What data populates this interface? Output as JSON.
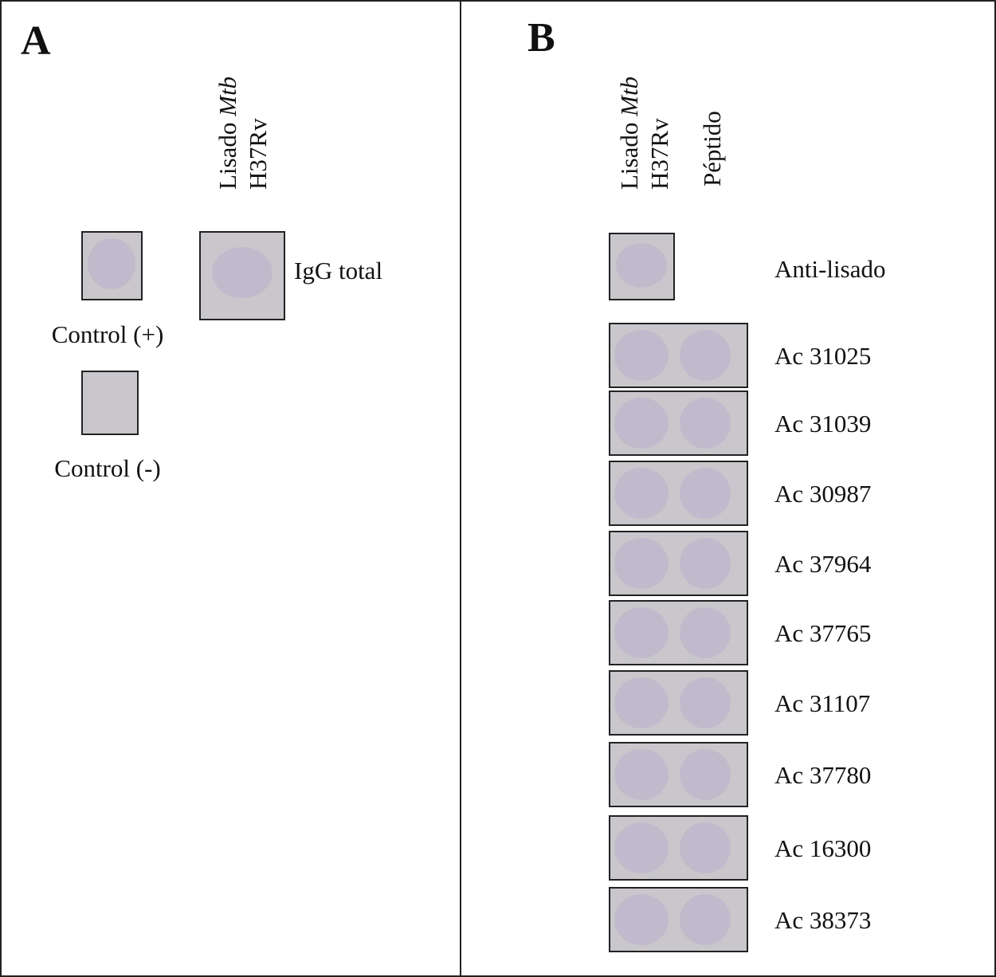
{
  "panel_a": {
    "label": "A",
    "column_header": {
      "line1": "Lisado",
      "line1_italic": "Mtb",
      "line2": "H37Rv"
    },
    "controls": [
      "Control (+)",
      "Control (-)"
    ],
    "row_label": "IgG total"
  },
  "panel_b": {
    "label": "B",
    "column_headers": [
      {
        "line1": "Lisado",
        "line1_italic": "Mtb",
        "line2": "H37Rv"
      },
      "Péptido"
    ],
    "reference_row": "Anti-lisado",
    "rows": [
      "Ac 31025",
      "Ac 31039",
      "Ac 30987",
      "Ac 37964",
      "Ac 37765",
      "Ac 31107",
      "Ac 37780",
      "Ac 16300",
      "Ac 38373"
    ]
  }
}
